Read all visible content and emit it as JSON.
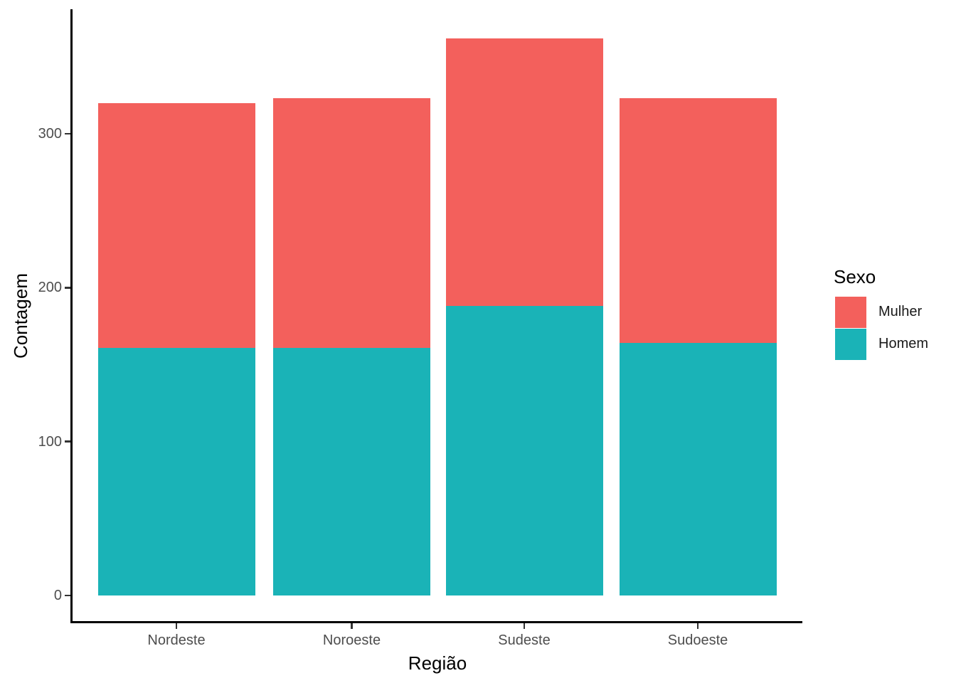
{
  "chart_data": {
    "type": "bar",
    "stacked": true,
    "title": "",
    "xlabel": "Região",
    "ylabel": "Contagem",
    "categories": [
      "Nordeste",
      "Noroeste",
      "Sudeste",
      "Sudoeste"
    ],
    "series": [
      {
        "name": "Homem",
        "color": "#1AB3B7",
        "values": [
          161,
          161,
          188,
          164
        ]
      },
      {
        "name": "Mulher",
        "color": "#F3605C",
        "values": [
          159,
          162,
          174,
          159
        ]
      }
    ],
    "totals": [
      320,
      323,
      362,
      323
    ],
    "yticks": [
      0,
      100,
      200,
      300
    ],
    "ylim": [
      0,
      380
    ],
    "grid": false,
    "legend": {
      "title": "Sexo",
      "position": "right",
      "entries": [
        {
          "label": "Mulher",
          "series": "Mulher"
        },
        {
          "label": "Homem",
          "series": "Homem"
        }
      ]
    },
    "style": {
      "background": "#FFFFFF",
      "axis_line_color": "#000000",
      "tick_label_color": "#4D4D4D",
      "title_color": "#000000"
    }
  }
}
